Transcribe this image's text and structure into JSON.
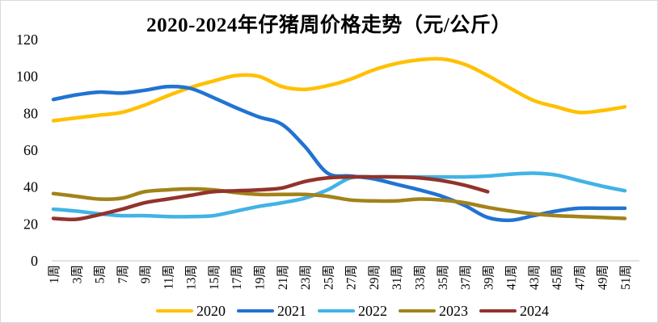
{
  "panel": {
    "background": "#FFFFFF",
    "border_color": "#D9D9D9",
    "axis_line_color": "#D9D9D9",
    "text_color": "#000000"
  },
  "chart_data": {
    "type": "line",
    "title": "2020-2024年仔猪周价格走势（元/公斤）",
    "xlabel": "",
    "ylabel": "",
    "ylim": [
      0,
      120
    ],
    "y_ticks": [
      0,
      20,
      40,
      60,
      80,
      100,
      120
    ],
    "grid": false,
    "legend_position": "bottom",
    "line_style": "smooth",
    "categories": [
      "1周",
      "3周",
      "5周",
      "7周",
      "9周",
      "11周",
      "13周",
      "15周",
      "17周",
      "19周",
      "21周",
      "23周",
      "25周",
      "27周",
      "29周",
      "31周",
      "33周",
      "35周",
      "37周",
      "39周",
      "41周",
      "43周",
      "45周",
      "47周",
      "49周",
      "51周"
    ],
    "series": [
      {
        "name": "2020",
        "color": "#FFC000",
        "values": [
          76,
          77.5,
          79,
          80.5,
          84.5,
          89.5,
          94,
          97.5,
          100.5,
          100,
          94.5,
          93,
          95,
          98.5,
          103.5,
          107,
          109,
          109.5,
          106.5,
          100.5,
          93.5,
          87,
          83.5,
          80.5,
          81.5,
          83.5
        ]
      },
      {
        "name": "2021",
        "color": "#2173D2",
        "values": [
          87.5,
          90,
          91.5,
          91,
          92.5,
          94.5,
          93.5,
          88.5,
          83,
          78,
          74,
          62,
          47.5,
          46,
          44.5,
          41.5,
          38.5,
          35,
          30,
          23.5,
          22,
          24.5,
          27,
          28.5,
          28.5,
          28.5
        ]
      },
      {
        "name": "2022",
        "color": "#41B3E6",
        "values": [
          28,
          27,
          25.5,
          24.5,
          24.5,
          24,
          24,
          24.5,
          27,
          29.5,
          31.5,
          34,
          38.5,
          45,
          45.5,
          45.5,
          45.5,
          45.5,
          45.5,
          46,
          47,
          47.5,
          46.5,
          43.5,
          40.5,
          38
        ]
      },
      {
        "name": "2023",
        "color": "#A2831A",
        "values": [
          36.5,
          35,
          33.5,
          34,
          37.5,
          38.5,
          39,
          38.5,
          37,
          36,
          36,
          36,
          35,
          33,
          32.5,
          32.5,
          33.5,
          33,
          31.5,
          29,
          27,
          25.5,
          24.5,
          24,
          23.5,
          23
        ]
      },
      {
        "name": "2024",
        "color": "#92332B",
        "values": [
          23,
          22.5,
          25,
          28,
          31.5,
          33.5,
          35.5,
          37.5,
          38,
          38.5,
          39.5,
          43,
          45,
          45.5,
          45.5,
          45.5,
          45,
          43.5,
          41,
          37.5,
          null,
          null,
          null,
          null,
          null,
          null
        ]
      }
    ]
  }
}
